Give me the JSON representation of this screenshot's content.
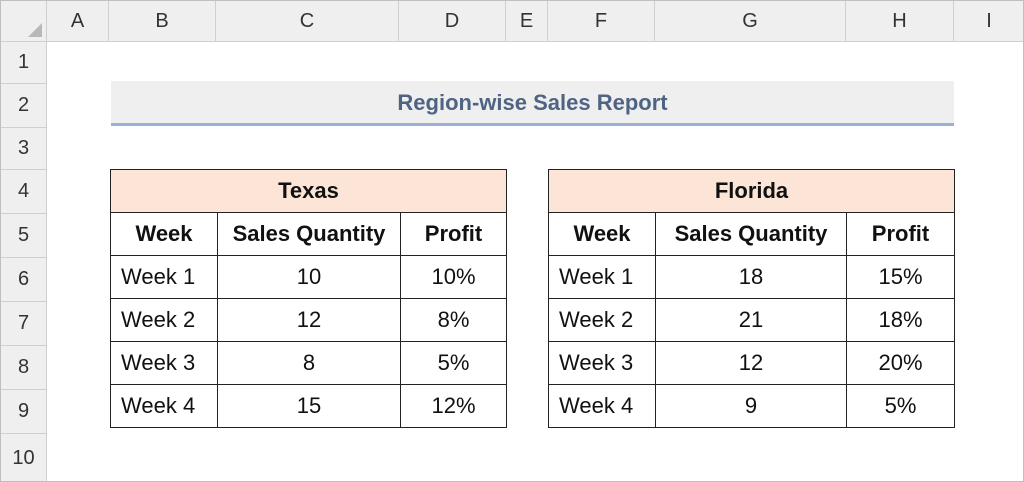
{
  "columns": [
    "A",
    "B",
    "C",
    "D",
    "E",
    "F",
    "G",
    "H",
    "I"
  ],
  "rows": [
    "1",
    "2",
    "3",
    "4",
    "5",
    "6",
    "7",
    "8",
    "9",
    "10"
  ],
  "title": "Region-wise Sales Report",
  "tables": [
    {
      "region": "Texas",
      "headers": [
        "Week",
        "Sales Quantity",
        "Profit"
      ],
      "rows": [
        [
          "Week 1",
          "10",
          "10%"
        ],
        [
          "Week 2",
          "12",
          "8%"
        ],
        [
          "Week 3",
          "8",
          "5%"
        ],
        [
          "Week 4",
          "15",
          "12%"
        ]
      ]
    },
    {
      "region": "Florida",
      "headers": [
        "Week",
        "Sales Quantity",
        "Profit"
      ],
      "rows": [
        [
          "Week 1",
          "18",
          "15%"
        ],
        [
          "Week 2",
          "21",
          "18%"
        ],
        [
          "Week 3",
          "12",
          "20%"
        ],
        [
          "Week 4",
          "9",
          "5%"
        ]
      ]
    }
  ]
}
